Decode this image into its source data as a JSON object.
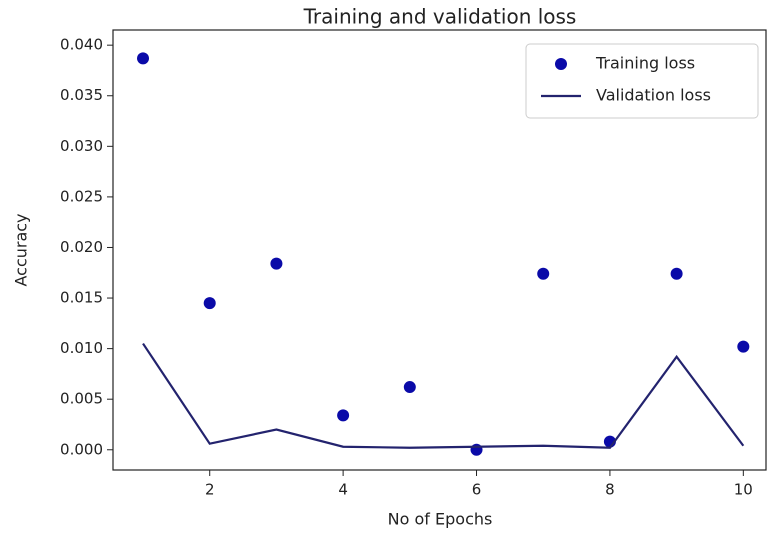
{
  "chart_data": {
    "type": "line",
    "title": "Training and validation loss",
    "x_label": "No of Epochs",
    "y_label": "Accuracy",
    "x": [
      1,
      2,
      3,
      4,
      5,
      6,
      7,
      8,
      9,
      10
    ],
    "series": [
      {
        "name": "Training loss",
        "color": "#0a0aa8",
        "style": "markers",
        "values": [
          0.0387,
          0.0145,
          0.0184,
          0.0034,
          0.0062,
          0.0,
          0.0174,
          0.0008,
          0.0174,
          0.0102
        ]
      },
      {
        "name": "Validation loss",
        "color": "#23236e",
        "style": "line",
        "values": [
          0.0105,
          0.0006,
          0.002,
          0.0003,
          0.0002,
          0.0003,
          0.0004,
          0.0002,
          0.0092,
          0.0004
        ]
      }
    ],
    "xlim": [
      0.55,
      10.34
    ],
    "ylim": [
      -0.002,
      0.0415
    ],
    "xticks": [
      2,
      4,
      6,
      8,
      10
    ],
    "yticks": [
      {
        "value": 0,
        "label": "0.000"
      },
      {
        "value": 0.005,
        "label": "0.005"
      },
      {
        "value": 0.01,
        "label": "0.010"
      },
      {
        "value": 0.015,
        "label": "0.015"
      },
      {
        "value": 0.02,
        "label": "0.020"
      },
      {
        "value": 0.025,
        "label": "0.025"
      },
      {
        "value": 0.03,
        "label": "0.030"
      },
      {
        "value": 0.035,
        "label": "0.035"
      },
      {
        "value": 0.04,
        "label": "0.040"
      }
    ],
    "grid": false,
    "legend": "upper right"
  }
}
